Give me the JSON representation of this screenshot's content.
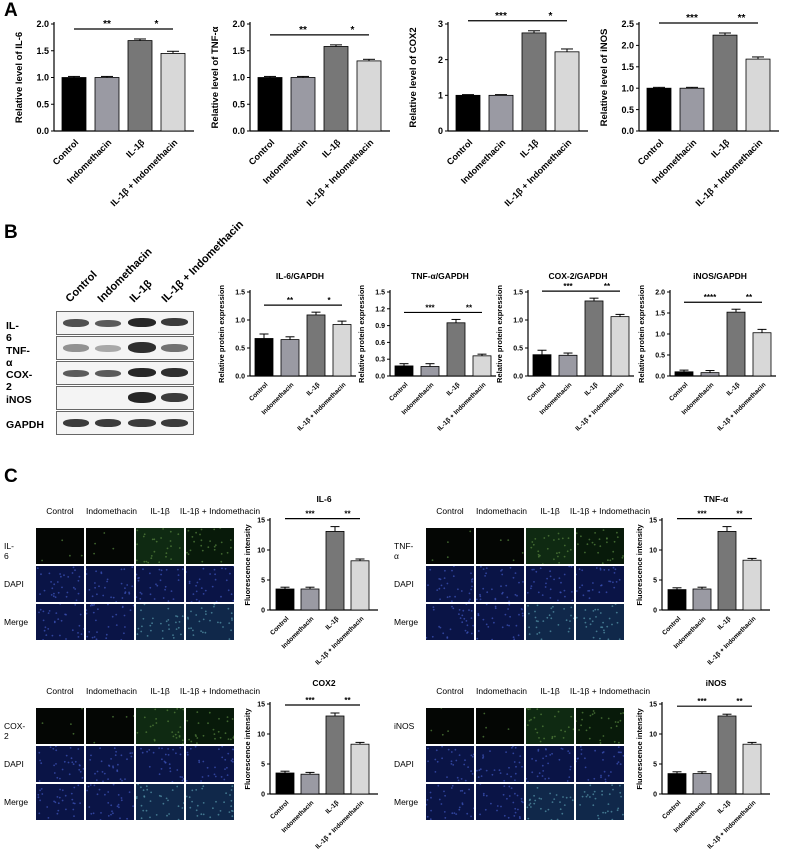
{
  "panels": {
    "A": {
      "letter": "A",
      "charts": [
        {
          "ylabel": "Relative level of IL-6",
          "ymax": 2.0,
          "ticks": [
            "0.0",
            "0.5",
            "1.0",
            "1.5",
            "2.0"
          ],
          "tickvals": [
            0,
            0.5,
            1,
            1.5,
            2
          ],
          "values": [
            1.0,
            1.0,
            1.69,
            1.45
          ],
          "errors": [
            0.02,
            0.02,
            0.03,
            0.04
          ],
          "sig": [
            "**",
            "*"
          ]
        },
        {
          "ylabel": "Relative level of TNF-α",
          "ymax": 2.0,
          "ticks": [
            "0.0",
            "0.5",
            "1.0",
            "1.5",
            "2.0"
          ],
          "tickvals": [
            0,
            0.5,
            1,
            1.5,
            2
          ],
          "values": [
            1.0,
            1.0,
            1.58,
            1.31
          ],
          "errors": [
            0.02,
            0.02,
            0.03,
            0.03
          ],
          "sig": [
            "**",
            "*"
          ]
        },
        {
          "ylabel": "Relative level of COX2",
          "ymax": 3,
          "ticks": [
            "0",
            "1",
            "2",
            "3"
          ],
          "tickvals": [
            0,
            1,
            2,
            3
          ],
          "values": [
            1.0,
            1.0,
            2.75,
            2.22
          ],
          "errors": [
            0.02,
            0.02,
            0.06,
            0.08
          ],
          "sig": [
            "***",
            "*"
          ]
        },
        {
          "ylabel": "Relative level of iNOS",
          "ymax": 2.5,
          "ticks": [
            "0.0",
            "0.5",
            "1.0",
            "1.5",
            "2.0",
            "2.5"
          ],
          "tickvals": [
            0,
            0.5,
            1,
            1.5,
            2,
            2.5
          ],
          "values": [
            1.0,
            1.0,
            2.24,
            1.68
          ],
          "errors": [
            0.02,
            0.02,
            0.05,
            0.05
          ],
          "sig": [
            "***",
            "**"
          ]
        }
      ]
    },
    "B": {
      "letter": "B",
      "lanes": [
        "Control",
        "Indomethacin",
        "IL-1β",
        "IL-1β + Indomethacin"
      ],
      "blot_rows": [
        "IL-6",
        "TNF-α",
        "COX-2",
        "iNOS",
        "GAPDH"
      ],
      "charts": [
        {
          "title": "IL-6/GAPDH",
          "ylabel": "Relative protein expression",
          "ymax": 1.5,
          "ticks": [
            "0.0",
            "0.5",
            "1.0",
            "1.5"
          ],
          "tickvals": [
            0,
            0.5,
            1,
            1.5
          ],
          "values": [
            0.67,
            0.65,
            1.09,
            0.92
          ],
          "errors": [
            0.08,
            0.05,
            0.05,
            0.06
          ],
          "sig": [
            "**",
            "*"
          ]
        },
        {
          "title": "TNF-α/GAPDH",
          "ylabel": "Relative protein expression",
          "ymax": 1.5,
          "ticks": [
            "0.0",
            "0.3",
            "0.6",
            "0.9",
            "1.2",
            "1.5"
          ],
          "tickvals": [
            0,
            0.3,
            0.6,
            0.9,
            1.2,
            1.5
          ],
          "values": [
            0.18,
            0.17,
            0.95,
            0.36
          ],
          "errors": [
            0.04,
            0.05,
            0.06,
            0.03
          ],
          "sig": [
            "***",
            "**"
          ]
        },
        {
          "title": "COX-2/GAPDH",
          "ylabel": "Relative protein expression",
          "ymax": 1.5,
          "ticks": [
            "0.0",
            "0.5",
            "1.0",
            "1.5"
          ],
          "tickvals": [
            0,
            0.5,
            1,
            1.5
          ],
          "values": [
            0.38,
            0.37,
            1.34,
            1.06
          ],
          "errors": [
            0.08,
            0.04,
            0.05,
            0.04
          ],
          "sig": [
            "***",
            "**"
          ]
        },
        {
          "title": "iNOS/GAPDH",
          "ylabel": "Relative protein expression",
          "ymax": 2.0,
          "ticks": [
            "0.0",
            "0.5",
            "1.0",
            "1.5",
            "2.0"
          ],
          "tickvals": [
            0,
            0.5,
            1,
            1.5,
            2
          ],
          "values": [
            0.1,
            0.08,
            1.52,
            1.03
          ],
          "errors": [
            0.04,
            0.05,
            0.07,
            0.08
          ],
          "sig": [
            "****",
            "**"
          ]
        }
      ]
    },
    "C": {
      "letter": "C",
      "col_labels": [
        "Control",
        "Indomethacin",
        "IL-1β",
        "IL-1β + Indomethacin"
      ],
      "groups": [
        {
          "rows": [
            "IL-6",
            "DAPI",
            "Merge"
          ],
          "title": "IL-6",
          "ylabel": "Fluorescence intensity",
          "ymax": 15,
          "ticks": [
            "0",
            "5",
            "10",
            "15"
          ],
          "tickvals": [
            0,
            5,
            10,
            15
          ],
          "values": [
            3.5,
            3.5,
            13.1,
            8.2
          ],
          "errors": [
            0.3,
            0.3,
            0.8,
            0.3
          ],
          "sig": [
            "***",
            "**"
          ]
        },
        {
          "rows": [
            "TNF-α",
            "DAPI",
            "Merge"
          ],
          "title": "TNF-α",
          "ylabel": "Fluorescence intensity",
          "ymax": 15,
          "ticks": [
            "0",
            "5",
            "10",
            "15"
          ],
          "tickvals": [
            0,
            5,
            10,
            15
          ],
          "values": [
            3.4,
            3.5,
            13.1,
            8.3
          ],
          "errors": [
            0.3,
            0.3,
            0.8,
            0.3
          ],
          "sig": [
            "***",
            "**"
          ]
        },
        {
          "rows": [
            "COX-2",
            "DAPI",
            "Merge"
          ],
          "title": "COX2",
          "ylabel": "Fluorescence intensity",
          "ymax": 15,
          "ticks": [
            "0",
            "5",
            "10",
            "15"
          ],
          "tickvals": [
            0,
            5,
            10,
            15
          ],
          "values": [
            3.5,
            3.3,
            13.0,
            8.3
          ],
          "errors": [
            0.3,
            0.3,
            0.5,
            0.3
          ],
          "sig": [
            "***",
            "**"
          ]
        },
        {
          "rows": [
            "iNOS",
            "DAPI",
            "Merge"
          ],
          "title": "iNOS",
          "ylabel": "Fluorescence intensity",
          "ymax": 15,
          "ticks": [
            "0",
            "5",
            "10",
            "15"
          ],
          "tickvals": [
            0,
            5,
            10,
            15
          ],
          "values": [
            3.4,
            3.4,
            13.0,
            8.3
          ],
          "errors": [
            0.3,
            0.3,
            0.3,
            0.3
          ],
          "sig": [
            "***",
            "**"
          ]
        }
      ]
    }
  },
  "categories": [
    "Control",
    "Indomethacin",
    "IL-1β",
    "IL-1β + Indomethacin"
  ],
  "colors": {
    "control": "#000000",
    "indomethacin": "#9a9aa3",
    "il1b": "#777777",
    "combo": "#d8d8d8",
    "if_green": "#1d3a1d",
    "if_blue": "#14205e"
  },
  "chart_data": [
    {
      "type": "bar",
      "panel": "A",
      "categories": [
        "Control",
        "Indomethacin",
        "IL-1β",
        "IL-1β + Indomethacin"
      ],
      "values": [
        1.0,
        1.0,
        1.69,
        1.45
      ],
      "ylabel": "Relative level of IL-6",
      "ylim": [
        0,
        2.0
      ]
    },
    {
      "type": "bar",
      "panel": "A",
      "categories": [
        "Control",
        "Indomethacin",
        "IL-1β",
        "IL-1β + Indomethacin"
      ],
      "values": [
        1.0,
        1.0,
        1.58,
        1.31
      ],
      "ylabel": "Relative level of TNF-α",
      "ylim": [
        0,
        2.0
      ]
    },
    {
      "type": "bar",
      "panel": "A",
      "categories": [
        "Control",
        "Indomethacin",
        "IL-1β",
        "IL-1β + Indomethacin"
      ],
      "values": [
        1.0,
        1.0,
        2.75,
        2.22
      ],
      "ylabel": "Relative level of COX2",
      "ylim": [
        0,
        3
      ]
    },
    {
      "type": "bar",
      "panel": "A",
      "categories": [
        "Control",
        "Indomethacin",
        "IL-1β",
        "IL-1β + Indomethacin"
      ],
      "values": [
        1.0,
        1.0,
        2.24,
        1.68
      ],
      "ylabel": "Relative level of iNOS",
      "ylim": [
        0,
        2.5
      ]
    },
    {
      "type": "bar",
      "panel": "B",
      "title": "IL-6/GAPDH",
      "categories": [
        "Control",
        "Indomethacin",
        "IL-1β",
        "IL-1β + Indomethacin"
      ],
      "values": [
        0.67,
        0.65,
        1.09,
        0.92
      ],
      "ylabel": "Relative protein expression",
      "ylim": [
        0,
        1.5
      ]
    },
    {
      "type": "bar",
      "panel": "B",
      "title": "TNF-α/GAPDH",
      "categories": [
        "Control",
        "Indomethacin",
        "IL-1β",
        "IL-1β + Indomethacin"
      ],
      "values": [
        0.18,
        0.17,
        0.95,
        0.36
      ],
      "ylabel": "Relative protein expression",
      "ylim": [
        0,
        1.5
      ]
    },
    {
      "type": "bar",
      "panel": "B",
      "title": "COX-2/GAPDH",
      "categories": [
        "Control",
        "Indomethacin",
        "IL-1β",
        "IL-1β + Indomethacin"
      ],
      "values": [
        0.38,
        0.37,
        1.34,
        1.06
      ],
      "ylabel": "Relative protein expression",
      "ylim": [
        0,
        1.5
      ]
    },
    {
      "type": "bar",
      "panel": "B",
      "title": "iNOS/GAPDH",
      "categories": [
        "Control",
        "Indomethacin",
        "IL-1β",
        "IL-1β + Indomethacin"
      ],
      "values": [
        0.1,
        0.08,
        1.52,
        1.03
      ],
      "ylabel": "Relative protein expression",
      "ylim": [
        0,
        2.0
      ]
    },
    {
      "type": "bar",
      "panel": "C",
      "title": "IL-6",
      "categories": [
        "Control",
        "Indomethacin",
        "IL-1β",
        "IL-1β + Indomethacin"
      ],
      "values": [
        3.5,
        3.5,
        13.1,
        8.2
      ],
      "ylabel": "Fluorescence intensity",
      "ylim": [
        0,
        15
      ]
    },
    {
      "type": "bar",
      "panel": "C",
      "title": "TNF-α",
      "categories": [
        "Control",
        "Indomethacin",
        "IL-1β",
        "IL-1β + Indomethacin"
      ],
      "values": [
        3.4,
        3.5,
        13.1,
        8.3
      ],
      "ylabel": "Fluorescence intensity",
      "ylim": [
        0,
        15
      ]
    },
    {
      "type": "bar",
      "panel": "C",
      "title": "COX2",
      "categories": [
        "Control",
        "Indomethacin",
        "IL-1β",
        "IL-1β + Indomethacin"
      ],
      "values": [
        3.5,
        3.3,
        13.0,
        8.3
      ],
      "ylabel": "Fluorescence intensity",
      "ylim": [
        0,
        15
      ]
    },
    {
      "type": "bar",
      "panel": "C",
      "title": "iNOS",
      "categories": [
        "Control",
        "Indomethacin",
        "IL-1β",
        "IL-1β + Indomethacin"
      ],
      "values": [
        3.4,
        3.4,
        13.0,
        8.3
      ],
      "ylabel": "Fluorescence intensity",
      "ylim": [
        0,
        15
      ]
    }
  ]
}
